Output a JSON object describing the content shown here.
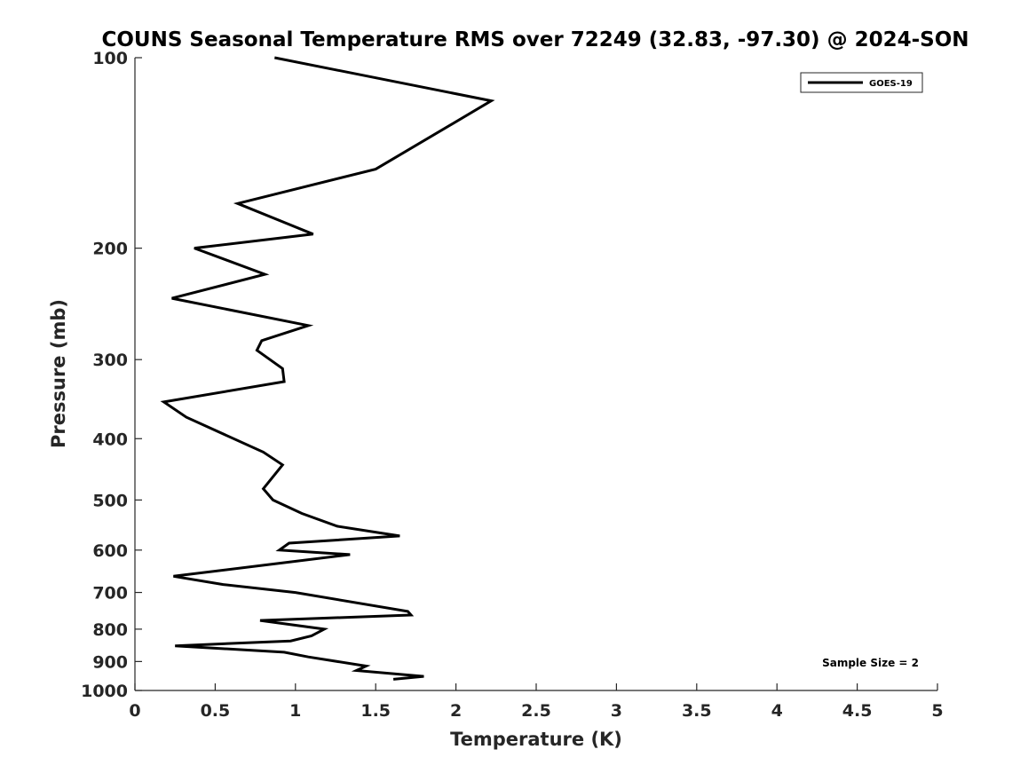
{
  "chart_data": {
    "type": "line",
    "title": "COUNS Seasonal Temperature RMS over 72249 (32.83, -97.30) @ 2024-SON",
    "xlabel": "Temperature (K)",
    "ylabel": "Pressure (mb)",
    "xlim": [
      0,
      5
    ],
    "ylim": [
      1000,
      100
    ],
    "y_scale": "log",
    "x_ticks": [
      "0",
      "0.5",
      "1",
      "1.5",
      "2",
      "2.5",
      "3",
      "3.5",
      "4",
      "4.5",
      "5"
    ],
    "y_ticks": [
      "100",
      "200",
      "300",
      "400",
      "500",
      "600",
      "700",
      "800",
      "900",
      "1000"
    ],
    "grid": false,
    "legend": {
      "position": "top-right"
    },
    "annotation": "Sample Size = 2",
    "series": [
      {
        "name": "GOES-19",
        "color": "#000000",
        "x": [
          0.87,
          2.22,
          1.5,
          0.64,
          1.11,
          0.37,
          0.81,
          0.23,
          1.08,
          0.79,
          0.76,
          0.92,
          0.93,
          0.18,
          0.32,
          0.8,
          0.92,
          0.8,
          0.86,
          1.04,
          1.26,
          1.65,
          0.96,
          0.9,
          1.34,
          0.24,
          0.55,
          1.0,
          1.7,
          1.72,
          0.78,
          1.18,
          1.1,
          0.97,
          0.25,
          0.93,
          1.08,
          1.44,
          1.38,
          1.8,
          1.61
        ],
        "y": [
          100,
          117,
          150,
          170,
          190,
          200,
          220,
          240,
          265,
          280,
          290,
          310,
          325,
          350,
          370,
          420,
          440,
          480,
          500,
          525,
          550,
          570,
          585,
          600,
          610,
          660,
          680,
          700,
          750,
          760,
          775,
          800,
          820,
          835,
          850,
          870,
          885,
          915,
          930,
          950,
          960
        ]
      }
    ]
  }
}
